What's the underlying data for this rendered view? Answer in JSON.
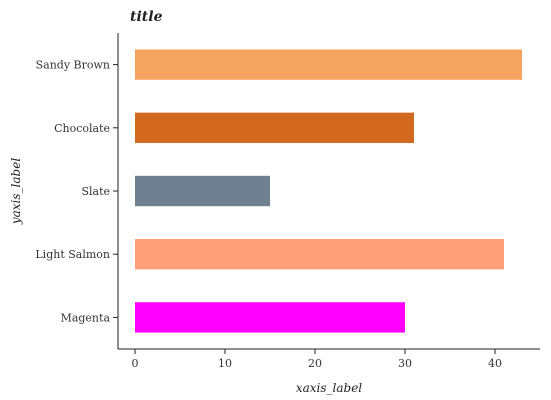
{
  "chart_data": {
    "type": "bar",
    "orientation": "horizontal",
    "title": "title",
    "xlabel": "xaxis_label",
    "ylabel": "yaxis_label",
    "categories": [
      "Magenta",
      "Light Salmon",
      "Slate",
      "Chocolate",
      "Sandy Brown"
    ],
    "values": [
      30,
      41,
      15,
      31,
      43
    ],
    "colors": [
      "#ff00ff",
      "#ffa07a",
      "#708090",
      "#d2691e",
      "#f4a460"
    ],
    "xlim": [
      0,
      43
    ],
    "xticks": [
      0,
      10,
      20,
      30,
      40
    ],
    "grid": false
  }
}
